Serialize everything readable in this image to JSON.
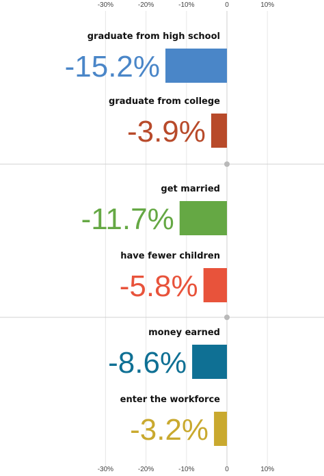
{
  "chart_data": {
    "type": "bar",
    "orientation": "horizontal",
    "xlim": [
      -35,
      25
    ],
    "ticks": [
      -30,
      -20,
      -10,
      0,
      10
    ],
    "tick_labels": [
      "-30%",
      "-20%",
      "-10%",
      "0",
      "10%"
    ],
    "grid": true,
    "groups": [
      {
        "items": [
          {
            "label": "graduate from high school",
            "value": -15.2,
            "value_label": "-15.2%",
            "color": "#4a86c8"
          },
          {
            "label": "graduate from college",
            "value": -3.9,
            "value_label": "-3.9%",
            "color": "#b84a2a"
          }
        ]
      },
      {
        "items": [
          {
            "label": "get married",
            "value": -11.7,
            "value_label": "-11.7%",
            "color": "#65a844"
          },
          {
            "label": "have fewer children",
            "value": -5.8,
            "value_label": "-5.8%",
            "color": "#e8533b"
          }
        ]
      },
      {
        "items": [
          {
            "label": "money earned",
            "value": -8.6,
            "value_label": "-8.6%",
            "color": "#0f7094"
          },
          {
            "label": "enter the workforce",
            "value": -3.2,
            "value_label": "-3.2%",
            "color": "#c9a92f"
          }
        ]
      }
    ]
  }
}
